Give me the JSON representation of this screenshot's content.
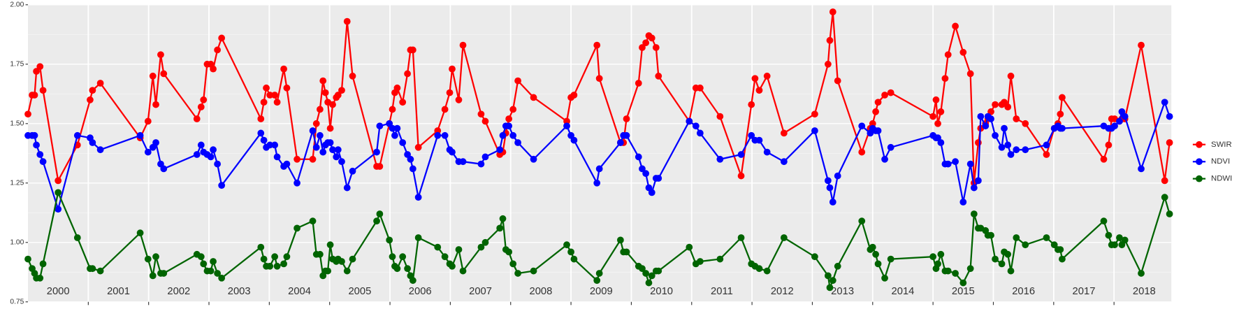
{
  "chart_data": {
    "type": "line",
    "x": [
      2000.0,
      2000.07,
      2000.11,
      2000.14,
      2000.2,
      2000.25,
      2000.5,
      2000.82,
      2001.03,
      2001.07,
      2001.2,
      2001.86,
      2001.99,
      2002.07,
      2002.12,
      2002.2,
      2002.25,
      2002.8,
      2002.87,
      2002.91,
      2002.97,
      2003.03,
      2003.07,
      2003.14,
      2003.21,
      2003.86,
      2003.91,
      2003.95,
      2004.01,
      2004.09,
      2004.13,
      2004.24,
      2004.29,
      2004.46,
      2004.72,
      2004.78,
      2004.84,
      2004.89,
      2004.93,
      2004.97,
      2005.01,
      2005.05,
      2005.11,
      2005.14,
      2005.2,
      2005.29,
      2005.38,
      2005.78,
      2005.83,
      2005.99,
      2006.04,
      2006.08,
      2006.12,
      2006.21,
      2006.29,
      2006.34,
      2006.38,
      2006.47,
      2006.79,
      2006.91,
      2006.99,
      2007.03,
      2007.14,
      2007.21,
      2007.51,
      2007.58,
      2007.82,
      2007.87,
      2007.92,
      2007.97,
      2008.04,
      2008.12,
      2008.38,
      2008.93,
      2009.0,
      2009.05,
      2009.43,
      2009.47,
      2009.82,
      2009.87,
      2009.92,
      2010.12,
      2010.18,
      2010.24,
      2010.29,
      2010.34,
      2010.41,
      2010.45,
      2010.96,
      2011.07,
      2011.14,
      2011.47,
      2011.82,
      2011.99,
      2012.05,
      2012.12,
      2012.25,
      2012.53,
      2013.04,
      2013.26,
      2013.29,
      2013.34,
      2013.42,
      2013.82,
      2013.96,
      2014.0,
      2014.05,
      2014.09,
      2014.2,
      2014.3,
      2015.0,
      2015.05,
      2015.08,
      2015.13,
      2015.2,
      2015.25,
      2015.37,
      2015.5,
      2015.62,
      2015.68,
      2015.75,
      2015.79,
      2015.87,
      2015.91,
      2015.96,
      2016.03,
      2016.14,
      2016.18,
      2016.24,
      2016.29,
      2016.38,
      2016.53,
      2016.88,
      2017.01,
      2017.07,
      2017.11,
      2017.14,
      2017.83,
      2017.91,
      2017.96,
      2018.01,
      2018.09,
      2018.13,
      2018.18,
      2018.45,
      2018.84,
      2018.92
    ],
    "series": [
      {
        "name": "SWIR",
        "color": "#ff0000",
        "values": [
          1.54,
          1.62,
          1.62,
          1.72,
          1.74,
          1.64,
          1.26,
          1.41,
          1.6,
          1.64,
          1.67,
          1.44,
          1.51,
          1.7,
          1.58,
          1.79,
          1.71,
          1.52,
          1.57,
          1.6,
          1.75,
          1.75,
          1.73,
          1.81,
          1.86,
          1.52,
          1.59,
          1.65,
          1.62,
          1.62,
          1.59,
          1.73,
          1.65,
          1.35,
          1.35,
          1.5,
          1.56,
          1.68,
          1.63,
          1.59,
          1.48,
          1.58,
          1.61,
          1.62,
          1.64,
          1.93,
          1.7,
          1.32,
          1.32,
          1.5,
          1.56,
          1.63,
          1.65,
          1.59,
          1.71,
          1.81,
          1.81,
          1.4,
          1.47,
          1.56,
          1.63,
          1.73,
          1.6,
          1.83,
          1.54,
          1.51,
          1.37,
          1.38,
          1.46,
          1.52,
          1.56,
          1.68,
          1.61,
          1.51,
          1.61,
          1.62,
          1.83,
          1.69,
          1.42,
          1.42,
          1.52,
          1.67,
          1.82,
          1.84,
          1.87,
          1.86,
          1.82,
          1.7,
          1.51,
          1.65,
          1.65,
          1.53,
          1.28,
          1.58,
          1.69,
          1.64,
          1.7,
          1.46,
          1.54,
          1.75,
          1.85,
          1.97,
          1.68,
          1.38,
          1.48,
          1.5,
          1.55,
          1.59,
          1.62,
          1.63,
          1.53,
          1.6,
          1.5,
          1.55,
          1.69,
          1.79,
          1.91,
          1.8,
          1.71,
          1.25,
          1.42,
          1.48,
          1.5,
          1.52,
          1.55,
          1.58,
          1.58,
          1.59,
          1.57,
          1.7,
          1.52,
          1.5,
          1.37,
          1.48,
          1.5,
          1.54,
          1.61,
          1.35,
          1.41,
          1.52,
          1.52,
          1.51,
          1.52,
          1.52,
          1.83,
          1.26,
          1.42
        ]
      },
      {
        "name": "NDVI",
        "color": "#0000ff",
        "values": [
          1.45,
          1.45,
          1.45,
          1.41,
          1.37,
          1.34,
          1.14,
          1.45,
          1.44,
          1.42,
          1.39,
          1.45,
          1.38,
          1.4,
          1.42,
          1.33,
          1.31,
          1.37,
          1.41,
          1.38,
          1.37,
          1.36,
          1.39,
          1.33,
          1.24,
          1.46,
          1.43,
          1.4,
          1.41,
          1.41,
          1.36,
          1.32,
          1.33,
          1.25,
          1.47,
          1.4,
          1.45,
          1.38,
          1.41,
          1.42,
          1.42,
          1.39,
          1.36,
          1.39,
          1.34,
          1.23,
          1.3,
          1.38,
          1.49,
          1.5,
          1.48,
          1.45,
          1.48,
          1.42,
          1.37,
          1.35,
          1.31,
          1.19,
          1.45,
          1.45,
          1.39,
          1.38,
          1.34,
          1.34,
          1.33,
          1.36,
          1.39,
          1.45,
          1.49,
          1.49,
          1.45,
          1.42,
          1.35,
          1.49,
          1.45,
          1.43,
          1.25,
          1.31,
          1.42,
          1.45,
          1.45,
          1.36,
          1.31,
          1.29,
          1.23,
          1.21,
          1.27,
          1.27,
          1.51,
          1.49,
          1.46,
          1.35,
          1.37,
          1.45,
          1.43,
          1.43,
          1.38,
          1.34,
          1.47,
          1.26,
          1.23,
          1.17,
          1.28,
          1.49,
          1.46,
          1.48,
          1.47,
          1.47,
          1.35,
          1.4,
          1.45,
          1.44,
          1.44,
          1.42,
          1.33,
          1.33,
          1.34,
          1.17,
          1.33,
          1.23,
          1.26,
          1.53,
          1.49,
          1.53,
          1.52,
          1.45,
          1.4,
          1.48,
          1.41,
          1.37,
          1.39,
          1.39,
          1.41,
          1.48,
          1.49,
          1.48,
          1.48,
          1.49,
          1.48,
          1.48,
          1.49,
          1.51,
          1.55,
          1.53,
          1.31,
          1.59,
          1.53
        ]
      },
      {
        "name": "NDWI",
        "color": "#006400",
        "values": [
          0.93,
          0.89,
          0.87,
          0.85,
          0.85,
          0.91,
          1.21,
          1.02,
          0.89,
          0.89,
          0.88,
          1.04,
          0.93,
          0.86,
          0.94,
          0.87,
          0.87,
          0.95,
          0.94,
          0.91,
          0.88,
          0.88,
          0.92,
          0.87,
          0.85,
          0.98,
          0.93,
          0.9,
          0.9,
          0.94,
          0.9,
          0.91,
          0.94,
          1.06,
          1.09,
          0.95,
          0.95,
          0.86,
          0.88,
          0.88,
          0.99,
          0.93,
          0.92,
          0.93,
          0.92,
          0.88,
          0.93,
          1.09,
          1.12,
          1.01,
          0.94,
          0.9,
          0.89,
          0.94,
          0.89,
          0.86,
          0.84,
          1.02,
          0.98,
          0.94,
          0.91,
          0.9,
          0.97,
          0.88,
          0.98,
          1.0,
          1.06,
          1.1,
          0.97,
          0.96,
          0.91,
          0.87,
          0.88,
          0.99,
          0.96,
          0.93,
          0.84,
          0.87,
          1.01,
          0.96,
          0.96,
          0.9,
          0.89,
          0.87,
          0.83,
          0.86,
          0.88,
          0.88,
          0.98,
          0.91,
          0.92,
          0.93,
          1.02,
          0.91,
          0.9,
          0.89,
          0.88,
          1.02,
          0.94,
          0.86,
          0.81,
          0.84,
          0.9,
          1.09,
          0.97,
          0.98,
          0.95,
          0.91,
          0.85,
          0.93,
          0.94,
          0.89,
          0.91,
          0.95,
          0.88,
          0.88,
          0.87,
          0.83,
          0.89,
          1.12,
          1.06,
          1.06,
          1.05,
          1.03,
          1.03,
          0.93,
          0.91,
          0.96,
          0.95,
          0.88,
          1.02,
          0.99,
          1.02,
          0.99,
          0.97,
          0.97,
          0.93,
          1.09,
          1.03,
          0.99,
          0.99,
          1.02,
          0.99,
          1.01,
          0.87,
          1.19,
          1.12
        ]
      }
    ],
    "xlim": [
      2000,
      2018.95
    ],
    "xticks": [
      {
        "value": 2000.5,
        "label": "2000"
      },
      {
        "value": 2001.5,
        "label": "2001"
      },
      {
        "value": 2002.5,
        "label": "2002"
      },
      {
        "value": 2003.5,
        "label": "2003"
      },
      {
        "value": 2004.5,
        "label": "2004"
      },
      {
        "value": 2005.5,
        "label": "2005"
      },
      {
        "value": 2006.5,
        "label": "2006"
      },
      {
        "value": 2007.5,
        "label": "2007"
      },
      {
        "value": 2008.5,
        "label": "2008"
      },
      {
        "value": 2009.5,
        "label": "2009"
      },
      {
        "value": 2010.5,
        "label": "2010"
      },
      {
        "value": 2011.5,
        "label": "2011"
      },
      {
        "value": 2012.5,
        "label": "2012"
      },
      {
        "value": 2013.5,
        "label": "2013"
      },
      {
        "value": 2014.5,
        "label": "2014"
      },
      {
        "value": 2015.5,
        "label": "2015"
      },
      {
        "value": 2016.5,
        "label": "2016"
      },
      {
        "value": 2017.5,
        "label": "2017"
      },
      {
        "value": 2018.5,
        "label": "2018"
      }
    ],
    "xgrid": [
      2001,
      2002,
      2003,
      2004,
      2005,
      2006,
      2007,
      2008,
      2009,
      2010,
      2011,
      2012,
      2013,
      2014,
      2015,
      2016,
      2017,
      2018
    ],
    "ylim": [
      0.75,
      2.0
    ],
    "yticks": [
      0.75,
      {
        "value": 1.0,
        "label": "1.00"
      },
      1.25,
      {
        "value": 1.5,
        "label": "1.50"
      },
      1.75,
      {
        "value": 2.0,
        "label": "2.00"
      }
    ],
    "grid": true,
    "legend": "right"
  }
}
